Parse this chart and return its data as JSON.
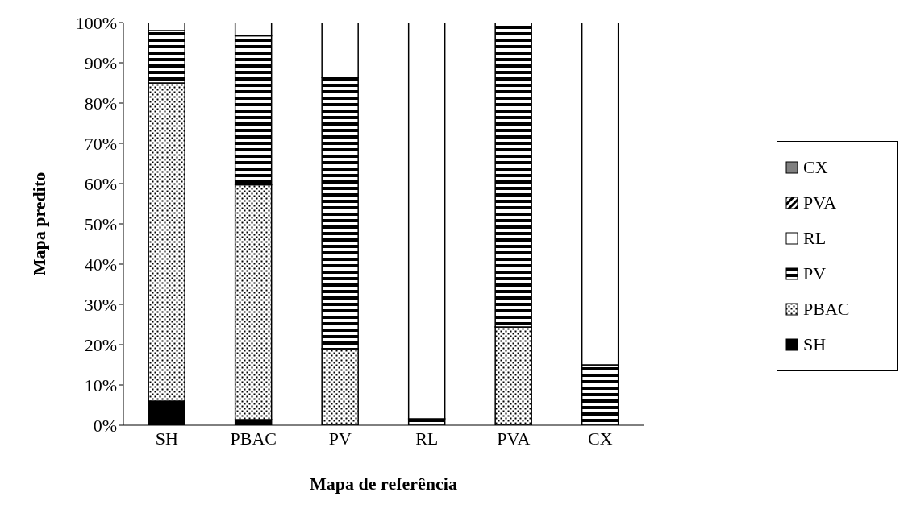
{
  "chart_data": {
    "type": "bar",
    "stacked": true,
    "xlabel": "Mapa de referência",
    "ylabel": "Mapa predito",
    "categories": [
      "SH",
      "PBAC",
      "PV",
      "RL",
      "PVA",
      "CX"
    ],
    "series": [
      {
        "name": "SH",
        "color": "#000000",
        "values": [
          6,
          1.4,
          0,
          0,
          0,
          0
        ]
      },
      {
        "name": "PBAC",
        "color": "#000000",
        "values": [
          79,
          58.3,
          19,
          0,
          24.4,
          0
        ]
      },
      {
        "name": "PV",
        "color": "#000000",
        "values": [
          13,
          37,
          67.4,
          1.6,
          75.6,
          15
        ]
      },
      {
        "name": "RL",
        "color": "#ffffff",
        "values": [
          2,
          3.3,
          13.6,
          98.4,
          0,
          85
        ]
      },
      {
        "name": "PVA",
        "color": "#000000",
        "values": [
          0,
          0,
          0,
          0,
          0,
          0
        ]
      },
      {
        "name": "CX",
        "color": "#808080",
        "values": [
          0,
          0,
          0,
          0,
          0,
          0
        ]
      }
    ],
    "ylim": [
      0,
      100
    ],
    "yticks": [
      {
        "value": 0,
        "label": "0%"
      },
      {
        "value": 10,
        "label": "10%"
      },
      {
        "value": 20,
        "label": "20%"
      },
      {
        "value": 30,
        "label": "30%"
      },
      {
        "value": 40,
        "label": "40%"
      },
      {
        "value": 50,
        "label": "50%"
      },
      {
        "value": 60,
        "label": "60%"
      },
      {
        "value": 70,
        "label": "70%"
      },
      {
        "value": 80,
        "label": "80%"
      },
      {
        "value": 90,
        "label": "90%"
      },
      {
        "value": 100,
        "label": "100%"
      }
    ],
    "legend": "right"
  }
}
